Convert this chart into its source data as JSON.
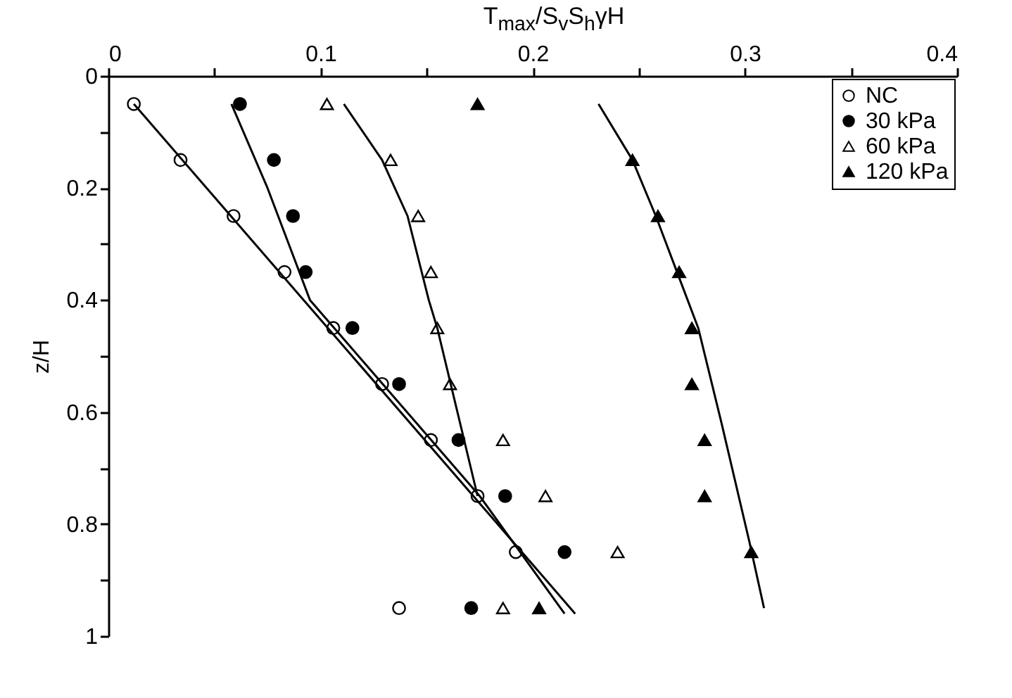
{
  "chart_data": {
    "type": "scatter",
    "xlabel": "T$_{max}$/S$_{v}$S$_{h}$γH",
    "ylabel": "z/H",
    "xlim": [
      0,
      0.4
    ],
    "xticks": [
      0,
      {
        "value": 0.05,
        "label": null
      },
      0.1,
      {
        "value": 0.15,
        "label": null
      },
      0.2,
      {
        "value": 0.25,
        "label": null
      },
      0.3,
      {
        "value": 0.35,
        "label": null
      },
      0.4
    ],
    "ylim": [
      1,
      0
    ],
    "yticks": [
      0,
      {
        "value": 0.1,
        "label": null
      },
      0.2,
      {
        "value": 0.3,
        "label": null
      },
      0.4,
      {
        "value": 0.5,
        "label": null
      },
      0.6,
      {
        "value": 0.7,
        "label": null
      },
      0.8,
      {
        "value": 0.9,
        "label": null
      },
      1
    ],
    "grid": false,
    "legend": "top right",
    "series": [
      {
        "name": "NC",
        "color": "#ffffff",
        "marker": "circle",
        "x": [
          0.012,
          0.034,
          0.059,
          0.083,
          0.106,
          0.129,
          0.152,
          0.174,
          0.192,
          0.137
        ],
        "values": [
          0.05,
          0.15,
          0.25,
          0.35,
          0.45,
          0.55,
          0.65,
          0.75,
          0.85,
          0.95
        ]
      },
      {
        "name": "30 kPa",
        "color": "#000000",
        "marker": "circle",
        "x": [
          0.062,
          0.078,
          0.087,
          0.093,
          0.115,
          0.137,
          0.165,
          0.187,
          0.215,
          0.171
        ],
        "values": [
          0.05,
          0.15,
          0.25,
          0.35,
          0.45,
          0.55,
          0.65,
          0.75,
          0.85,
          0.95
        ]
      },
      {
        "name": "60 kPa",
        "color": "#ffffff",
        "marker": "triangle",
        "x": [
          0.103,
          0.133,
          0.146,
          0.152,
          0.155,
          0.161,
          0.186,
          0.206,
          0.24,
          0.186
        ],
        "values": [
          0.05,
          0.15,
          0.25,
          0.35,
          0.45,
          0.55,
          0.65,
          0.75,
          0.85,
          0.95
        ]
      },
      {
        "name": "120 kPa",
        "color": "#000000",
        "marker": "triangle",
        "x": [
          0.174,
          0.247,
          0.259,
          0.269,
          0.275,
          0.275,
          0.281,
          0.281,
          0.303,
          0.203
        ],
        "values": [
          0.05,
          0.15,
          0.25,
          0.35,
          0.45,
          0.55,
          0.65,
          0.75,
          0.85,
          0.95
        ]
      },
      {
        "type": "line",
        "color": "#000000",
        "x": [
          0.012,
          0.22
        ],
        "values": [
          0.05,
          0.96
        ]
      },
      {
        "type": "line",
        "color": "#000000",
        "x": [
          0.058,
          0.075,
          0.085,
          0.095,
          0.175,
          0.215
        ],
        "values": [
          0.05,
          0.2,
          0.3,
          0.4,
          0.75,
          0.96
        ]
      },
      {
        "type": "line",
        "color": "#000000",
        "x": [
          0.111,
          0.129,
          0.141,
          0.151,
          0.155,
          0.174
        ],
        "values": [
          0.05,
          0.15,
          0.25,
          0.4,
          0.45,
          0.75
        ]
      },
      {
        "type": "line",
        "color": "#000000",
        "x": [
          0.231,
          0.247,
          0.258,
          0.268,
          0.278,
          0.289,
          0.302,
          0.309
        ],
        "values": [
          0.05,
          0.15,
          0.25,
          0.35,
          0.45,
          0.62,
          0.83,
          0.95
        ]
      }
    ]
  }
}
